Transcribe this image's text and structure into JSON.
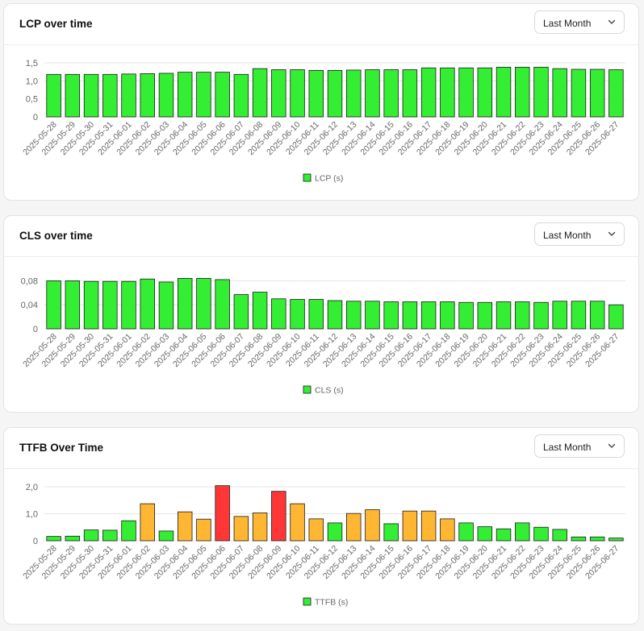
{
  "colors": {
    "good": "#33ee33",
    "needs_improvement": "#ffb733",
    "poor": "#ff3636",
    "bar_stroke": "#1a1a1a",
    "grid": "#e6e6e6",
    "tick_text": "#666666"
  },
  "icons": {
    "dropdown": "chevron-down-icon",
    "legend": "legend-swatch"
  },
  "dates": [
    "2025-05-28",
    "2025-05-29",
    "2025-05-30",
    "2025-05-31",
    "2025-06-01",
    "2025-06-02",
    "2025-06-03",
    "2025-06-04",
    "2025-06-05",
    "2025-06-06",
    "2025-06-07",
    "2025-06-08",
    "2025-06-09",
    "2025-06-10",
    "2025-06-11",
    "2025-06-12",
    "2025-06-13",
    "2025-06-14",
    "2025-06-15",
    "2025-06-16",
    "2025-06-17",
    "2025-06-18",
    "2025-06-19",
    "2025-06-20",
    "2025-06-21",
    "2025-06-22",
    "2025-06-23",
    "2025-06-24",
    "2025-06-25",
    "2025-06-26",
    "2025-06-27"
  ],
  "panels": [
    {
      "title": "LCP over time",
      "filter": "Last Month"
    },
    {
      "title": "CLS over time",
      "filter": "Last Month"
    },
    {
      "title": "TTFB Over Time",
      "filter": "Last Month"
    }
  ],
  "chart_data": [
    {
      "type": "bar",
      "title": "LCP over time",
      "legend": "bottom",
      "grid": true,
      "ylim": [
        0,
        1.5
      ],
      "yticks": [
        "0",
        "0,5",
        "1,0",
        "1,5"
      ],
      "series": [
        {
          "name": "LCP (s)",
          "values": [
            1.18,
            1.18,
            1.18,
            1.18,
            1.19,
            1.2,
            1.21,
            1.24,
            1.24,
            1.24,
            1.18,
            1.34,
            1.31,
            1.31,
            1.29,
            1.29,
            1.3,
            1.31,
            1.31,
            1.31,
            1.36,
            1.36,
            1.36,
            1.36,
            1.38,
            1.38,
            1.38,
            1.34,
            1.32,
            1.32,
            1.31
          ],
          "status": [
            "good",
            "good",
            "good",
            "good",
            "good",
            "good",
            "good",
            "good",
            "good",
            "good",
            "good",
            "good",
            "good",
            "good",
            "good",
            "good",
            "good",
            "good",
            "good",
            "good",
            "good",
            "good",
            "good",
            "good",
            "good",
            "good",
            "good",
            "good",
            "good",
            "good",
            "good"
          ]
        }
      ]
    },
    {
      "type": "bar",
      "title": "CLS over time",
      "legend": "bottom",
      "grid": true,
      "ylim": [
        0,
        0.09
      ],
      "yticks": [
        "0",
        "0,04",
        "0,08"
      ],
      "series": [
        {
          "name": "CLS (s)",
          "values": [
            0.08,
            0.08,
            0.079,
            0.079,
            0.079,
            0.083,
            0.078,
            0.084,
            0.084,
            0.082,
            0.057,
            0.061,
            0.05,
            0.049,
            0.049,
            0.047,
            0.046,
            0.046,
            0.045,
            0.045,
            0.045,
            0.045,
            0.044,
            0.044,
            0.045,
            0.045,
            0.044,
            0.046,
            0.046,
            0.046,
            0.04
          ],
          "status": [
            "good",
            "good",
            "good",
            "good",
            "good",
            "good",
            "good",
            "good",
            "good",
            "good",
            "good",
            "good",
            "good",
            "good",
            "good",
            "good",
            "good",
            "good",
            "good",
            "good",
            "good",
            "good",
            "good",
            "good",
            "good",
            "good",
            "good",
            "good",
            "good",
            "good",
            "good"
          ]
        }
      ]
    },
    {
      "type": "bar",
      "title": "TTFB Over Time",
      "legend": "bottom",
      "grid": true,
      "ylim": [
        0,
        2.0
      ],
      "yticks": [
        "0",
        "1,0",
        "2,0"
      ],
      "series": [
        {
          "name": "TTFB (s)",
          "values": [
            0.16,
            0.17,
            0.4,
            0.39,
            0.74,
            1.37,
            0.36,
            1.07,
            0.8,
            2.04,
            0.9,
            1.03,
            1.83,
            1.37,
            0.81,
            0.66,
            1.01,
            1.15,
            0.63,
            1.1,
            1.1,
            0.81,
            0.66,
            0.52,
            0.44,
            0.66,
            0.5,
            0.42,
            0.14,
            0.14,
            0.1
          ],
          "status": [
            "good",
            "good",
            "good",
            "good",
            "good",
            "needs_improvement",
            "good",
            "needs_improvement",
            "needs_improvement",
            "poor",
            "needs_improvement",
            "needs_improvement",
            "poor",
            "needs_improvement",
            "needs_improvement",
            "good",
            "needs_improvement",
            "needs_improvement",
            "good",
            "needs_improvement",
            "needs_improvement",
            "needs_improvement",
            "good",
            "good",
            "good",
            "good",
            "good",
            "good",
            "good",
            "good",
            "good"
          ]
        }
      ]
    }
  ]
}
